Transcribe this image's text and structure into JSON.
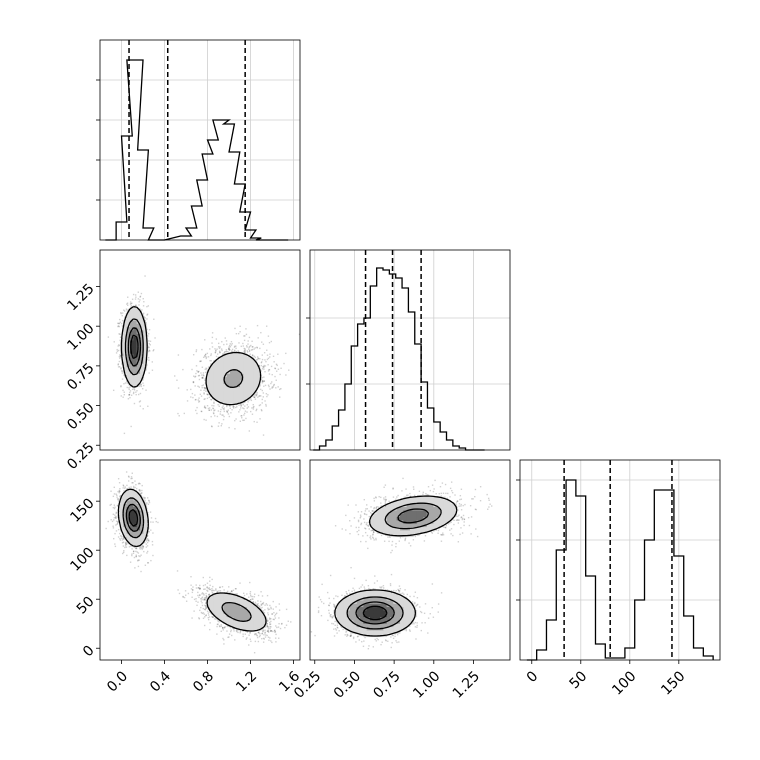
{
  "chart_data": [
    {
      "type": "histogram",
      "panel": "x0-marginal",
      "x_range": [
        -0.2,
        1.66
      ],
      "y_range": [
        0,
        1.0
      ],
      "x": [
        -0.1,
        0.0,
        0.05,
        0.1,
        0.15,
        0.2,
        0.25,
        0.3,
        0.35,
        0.6,
        0.65,
        0.7,
        0.75,
        0.8,
        0.85,
        0.9,
        0.95,
        1.0,
        1.05,
        1.1,
        1.15,
        1.2,
        1.25,
        1.3,
        1.35,
        1.4,
        1.45,
        1.5
      ],
      "counts": [
        0.0,
        0.09,
        0.52,
        0.9,
        0.9,
        0.45,
        0.06,
        0.0,
        0.0,
        0.02,
        0.06,
        0.17,
        0.3,
        0.43,
        0.5,
        0.6,
        0.6,
        0.58,
        0.44,
        0.28,
        0.14,
        0.05,
        0.01,
        0.0,
        0.0,
        0.0,
        0.0,
        0.0
      ],
      "quantiles": [
        0.07,
        0.43,
        1.15
      ],
      "yticks": [
        0.2,
        0.4,
        0.6,
        0.8
      ]
    },
    {
      "type": "histogram",
      "panel": "x1-marginal",
      "x_range": [
        0.22,
        1.48
      ],
      "y_range": [
        0,
        1.0
      ],
      "x": [
        0.26,
        0.3,
        0.34,
        0.38,
        0.42,
        0.46,
        0.5,
        0.54,
        0.58,
        0.62,
        0.66,
        0.7,
        0.74,
        0.78,
        0.82,
        0.86,
        0.9,
        0.94,
        0.98,
        1.02,
        1.06,
        1.1,
        1.14,
        1.18,
        1.22,
        1.26,
        1.3
      ],
      "counts": [
        0.0,
        0.02,
        0.05,
        0.12,
        0.2,
        0.33,
        0.52,
        0.63,
        0.66,
        0.82,
        0.91,
        0.9,
        0.88,
        0.86,
        0.81,
        0.69,
        0.53,
        0.34,
        0.21,
        0.14,
        0.09,
        0.05,
        0.02,
        0.01,
        0.0,
        0.0,
        0.0
      ],
      "quantiles": [
        0.57,
        0.74,
        0.92
      ],
      "yticks": [
        0.33,
        0.66
      ]
    },
    {
      "type": "histogram",
      "panel": "x2-marginal",
      "x_range": [
        -12,
        192
      ],
      "y_range": [
        0,
        1.0
      ],
      "x": [
        0,
        10,
        20,
        30,
        40,
        50,
        60,
        70,
        80,
        90,
        100,
        110,
        120,
        130,
        140,
        150,
        160,
        170,
        180
      ],
      "counts": [
        0.0,
        0.05,
        0.2,
        0.55,
        0.9,
        0.82,
        0.42,
        0.08,
        0.01,
        0.01,
        0.06,
        0.3,
        0.6,
        0.85,
        0.85,
        0.52,
        0.22,
        0.06,
        0.02
      ],
      "quantiles": [
        33,
        80,
        143
      ],
      "yticks": [
        0.3,
        0.6,
        0.9
      ]
    },
    {
      "type": "contour2d",
      "panel": "x0-vs-x1",
      "x_range": [
        -0.2,
        1.66
      ],
      "y_range": [
        0.22,
        1.48
      ],
      "blobs": [
        {
          "cx": 0.12,
          "cy": 0.87,
          "sx": 0.06,
          "sy": 0.13,
          "rho": 0.0,
          "weight": 1.0,
          "n": 1500
        },
        {
          "cx": 1.04,
          "cy": 0.67,
          "sx": 0.17,
          "sy": 0.11,
          "rho": 0.1,
          "weight": 0.45,
          "n": 1500
        }
      ],
      "levels": [
        0.15,
        0.4,
        0.65,
        0.85
      ],
      "xticks": [
        0.0,
        0.4,
        0.8,
        1.2,
        1.6
      ],
      "yticks": [
        0.25,
        0.5,
        0.75,
        1.0,
        1.25
      ],
      "ytick_labels": [
        "0.25",
        "0.50",
        "0.75",
        "1.00",
        "1.25"
      ]
    },
    {
      "type": "contour2d",
      "panel": "x0-vs-x2",
      "x_range": [
        -0.2,
        1.66
      ],
      "y_range": [
        -12,
        192
      ],
      "blobs": [
        {
          "cx": 0.11,
          "cy": 133,
          "sx": 0.07,
          "sy": 15,
          "rho": -0.2,
          "weight": 1.0,
          "n": 1500
        },
        {
          "cx": 1.07,
          "cy": 37,
          "sx": 0.17,
          "sy": 12,
          "rho": -0.5,
          "weight": 0.55,
          "n": 1500
        }
      ],
      "levels": [
        0.15,
        0.4,
        0.65,
        0.85
      ],
      "xticks": [
        0.0,
        0.4,
        0.8,
        1.2,
        1.6
      ],
      "xtick_labels": [
        "0.0",
        "0.4",
        "0.8",
        "1.2",
        "1.6"
      ],
      "yticks": [
        0,
        50,
        100,
        150
      ],
      "ytick_labels": [
        "0",
        "50",
        "100",
        "150"
      ]
    },
    {
      "type": "contour2d",
      "panel": "x1-vs-x2",
      "x_range": [
        0.22,
        1.48
      ],
      "y_range": [
        -12,
        192
      ],
      "blobs": [
        {
          "cx": 0.87,
          "cy": 135,
          "sx": 0.15,
          "sy": 11,
          "rho": 0.3,
          "weight": 0.8,
          "n": 1500
        },
        {
          "cx": 0.63,
          "cy": 36,
          "sx": 0.13,
          "sy": 12,
          "rho": 0.0,
          "weight": 1.0,
          "n": 1500
        }
      ],
      "levels": [
        0.15,
        0.4,
        0.65,
        0.85
      ],
      "xticks": [
        0.25,
        0.5,
        0.75,
        1.0,
        1.25
      ],
      "xtick_labels": [
        "0.25",
        "0.50",
        "0.75",
        "1.00",
        "1.25"
      ]
    },
    {
      "type": "axis",
      "panel": "x2-bottom",
      "xticks": [
        0,
        50,
        100,
        150
      ],
      "xtick_labels": [
        "0",
        "50",
        "100",
        "150"
      ]
    }
  ]
}
